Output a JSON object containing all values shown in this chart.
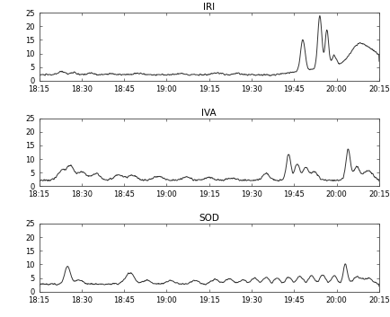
{
  "titles": [
    "IRI",
    "IVA",
    "SOD"
  ],
  "x_ticks_minutes": [
    0,
    15,
    30,
    45,
    60,
    75,
    90,
    105,
    120
  ],
  "x_tick_labels": [
    "18:15",
    "18:30",
    "18:45",
    "19:00",
    "19:15",
    "19:30",
    "19:45",
    "20:00",
    "20:15"
  ],
  "ylim": [
    0,
    25
  ],
  "yticks": [
    0,
    5,
    10,
    15,
    20,
    25
  ],
  "line_color": "#333333",
  "line_width": 0.7,
  "bg_color": "#ffffff",
  "fig_bg": "#ffffff",
  "title_fontsize": 7.5,
  "tick_fontsize": 6.0
}
